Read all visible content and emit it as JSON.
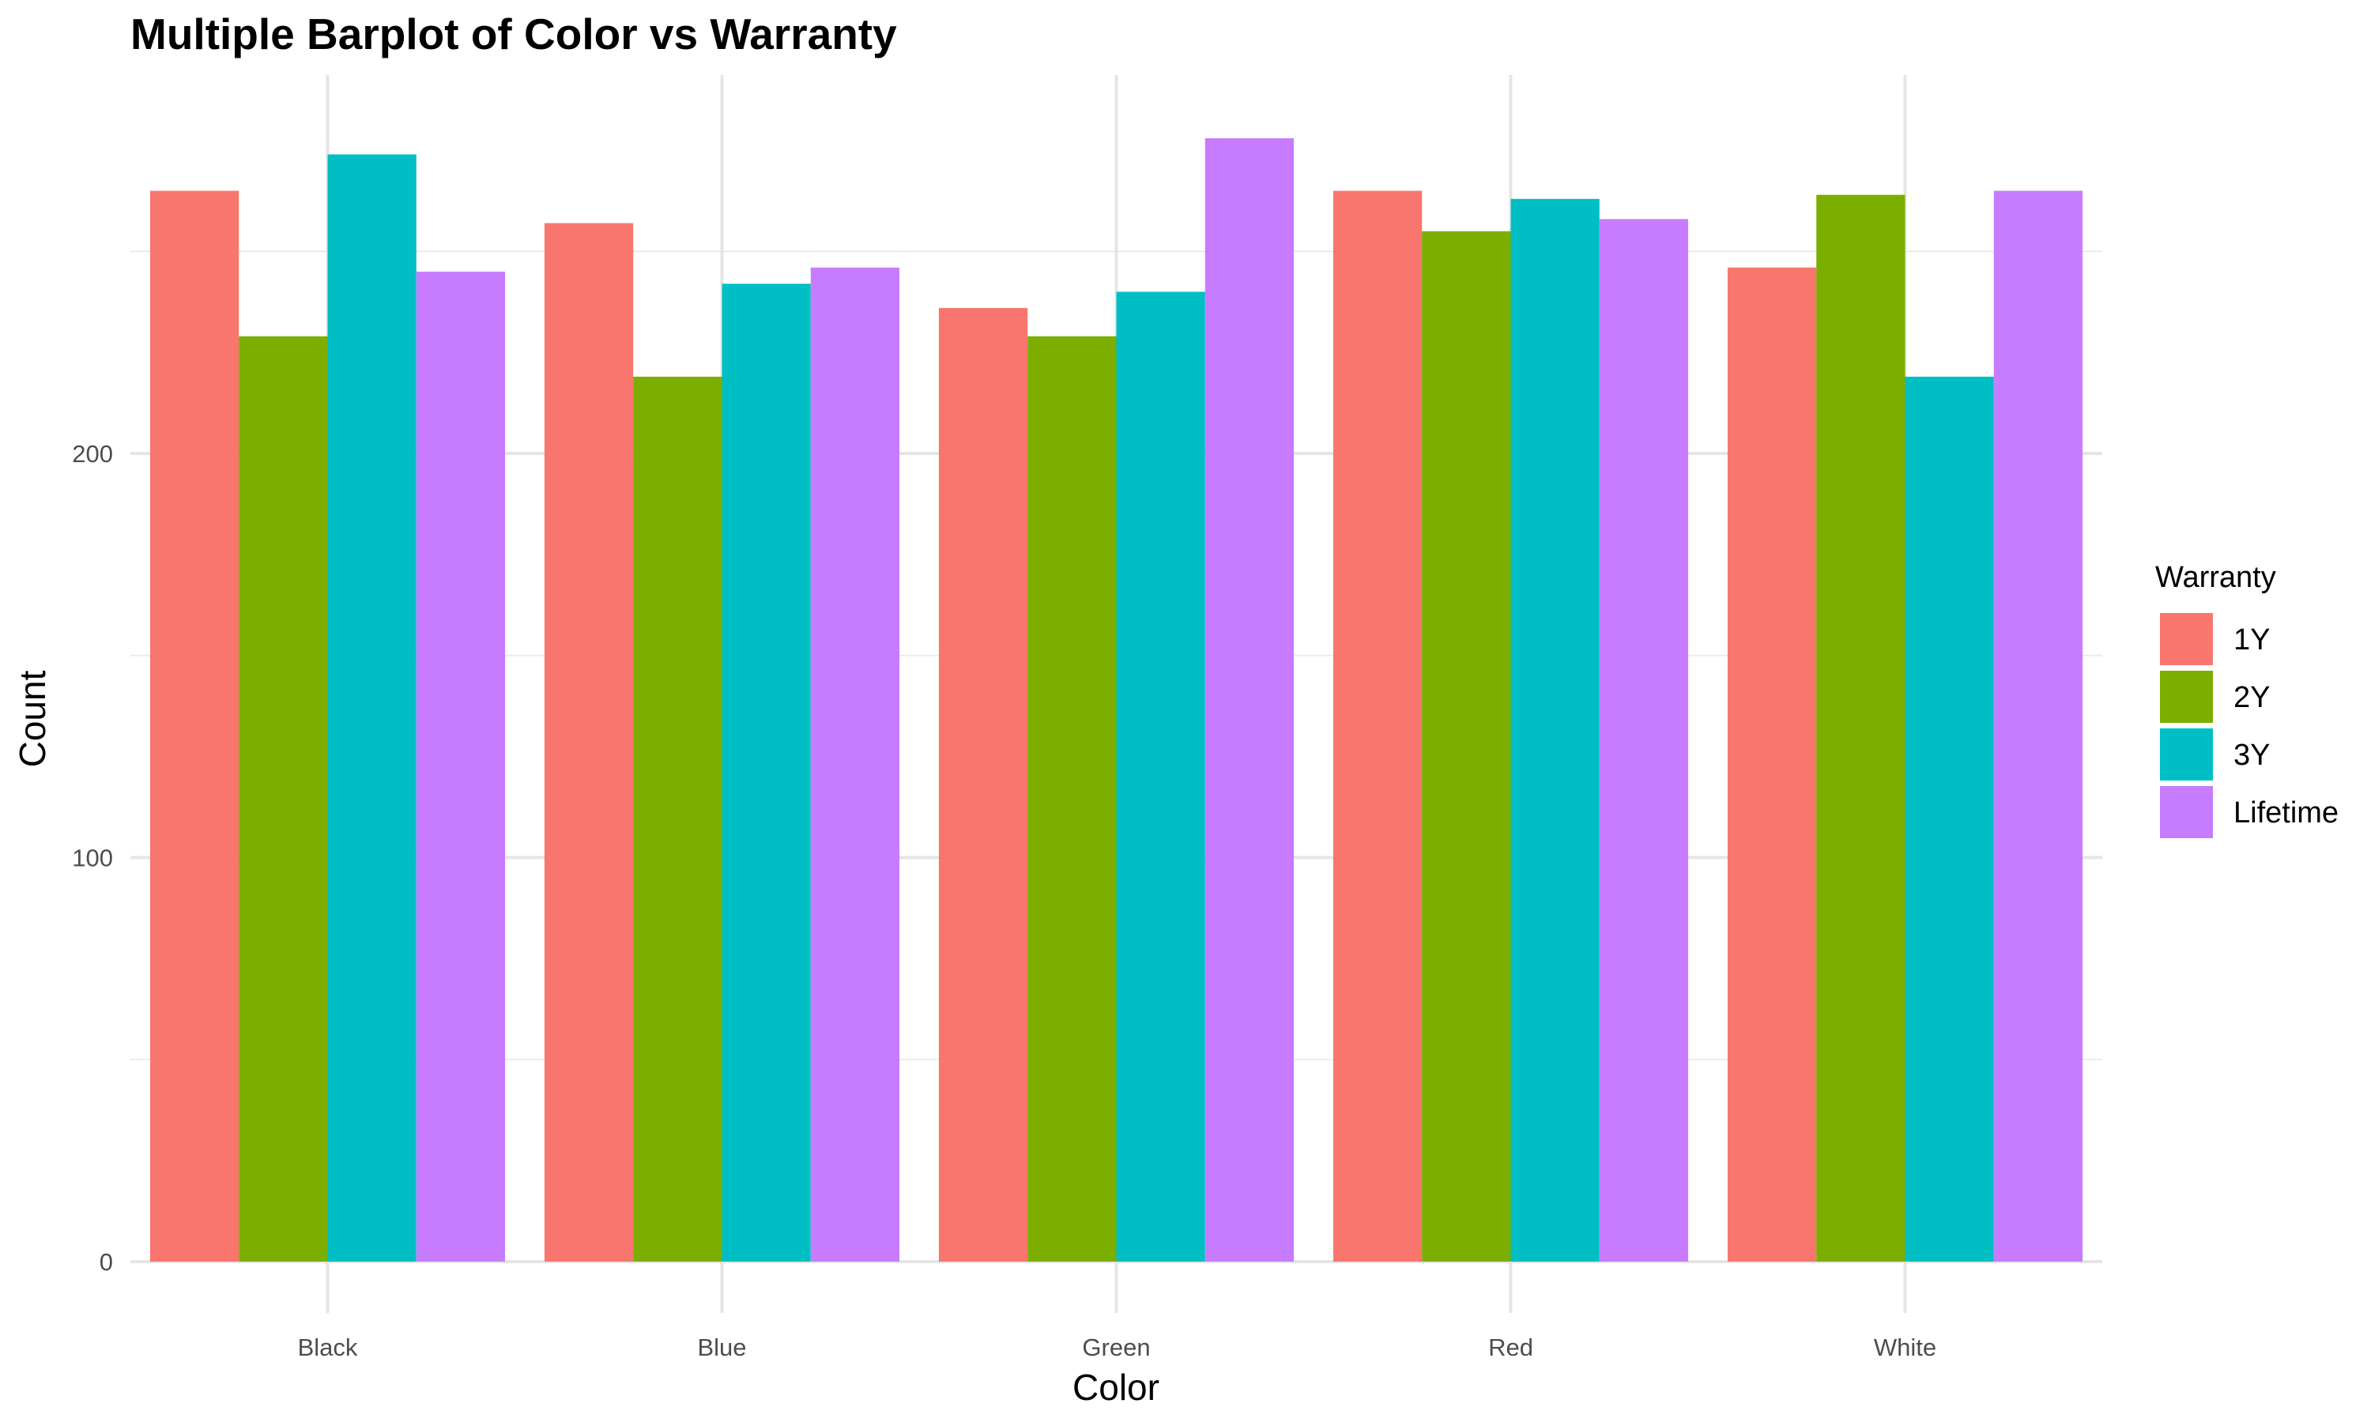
{
  "chart_data": {
    "type": "bar",
    "title": "Multiple Barplot of Color vs Warranty",
    "xlabel": "Color",
    "ylabel": "Count",
    "categories": [
      "Black",
      "Blue",
      "Green",
      "Red",
      "White"
    ],
    "ylim": [
      0,
      275
    ],
    "yticks": [
      0,
      100,
      200
    ],
    "y_minor_gridlines": [
      50,
      150,
      250
    ],
    "grid": true,
    "legend_title": "Warranty",
    "legend_position": "right",
    "series": [
      {
        "name": "1Y",
        "color": "#F8766D",
        "values": [
          265,
          257,
          236,
          265,
          246
        ]
      },
      {
        "name": "2Y",
        "color": "#7CAE00",
        "values": [
          229,
          219,
          229,
          255,
          264
        ]
      },
      {
        "name": "3Y",
        "color": "#00BFC4",
        "values": [
          274,
          242,
          240,
          263,
          219
        ]
      },
      {
        "name": "Lifetime",
        "color": "#C77CFF",
        "values": [
          245,
          246,
          278,
          258,
          265
        ]
      }
    ]
  }
}
